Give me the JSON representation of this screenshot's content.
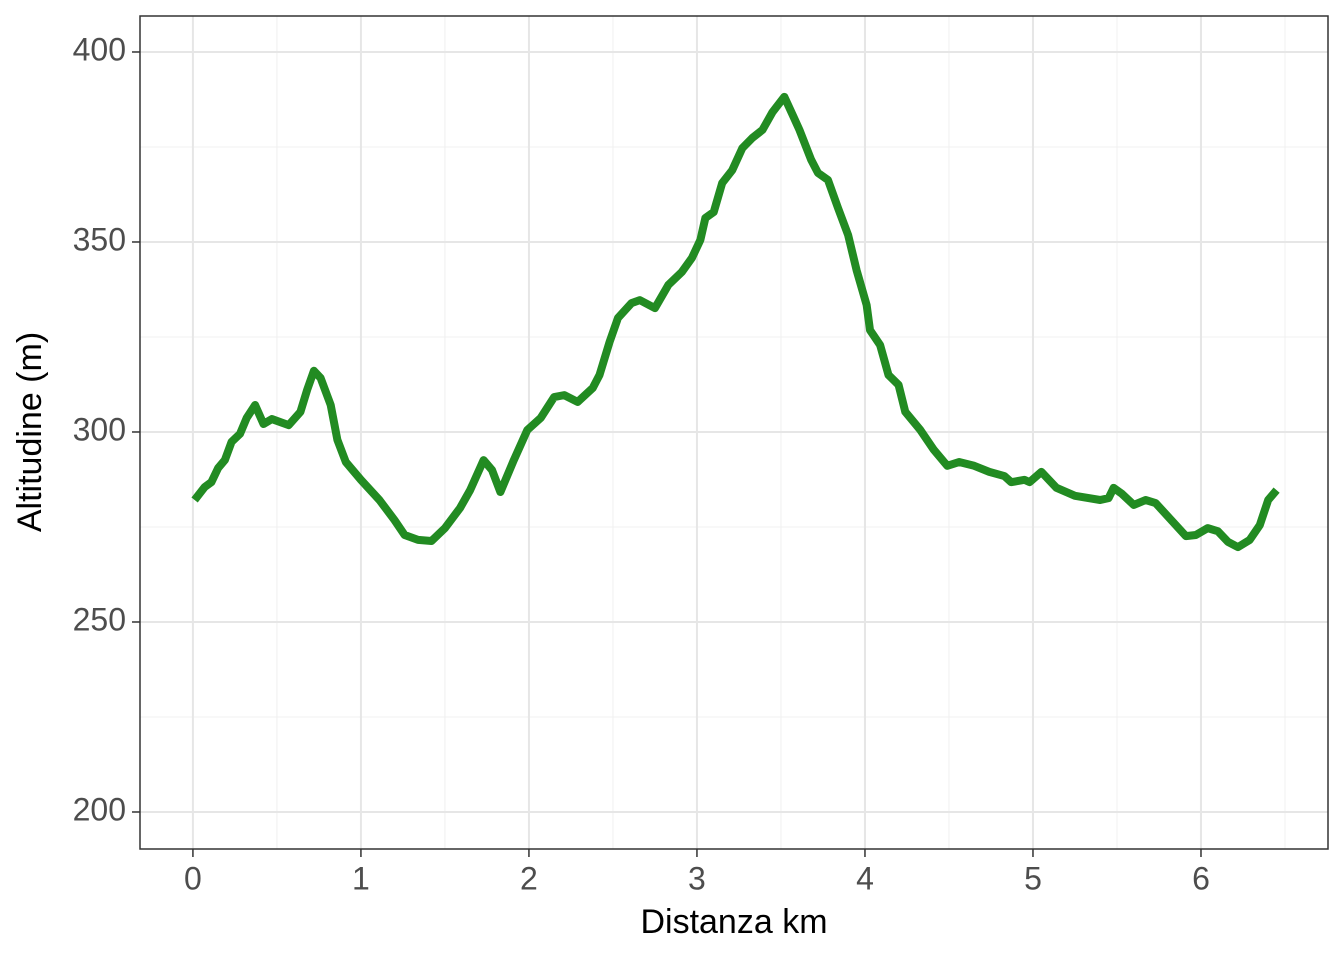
{
  "chart_data": {
    "type": "line",
    "x_label": "Distanza km",
    "y_label": "Altitudine (m)",
    "x": [
      0.01,
      0.07,
      0.11,
      0.15,
      0.19,
      0.23,
      0.28,
      0.32,
      0.37,
      0.42,
      0.47,
      0.57,
      0.64,
      0.68,
      0.72,
      0.76,
      0.82,
      0.86,
      0.91,
      1.0,
      1.11,
      1.2,
      1.26,
      1.34,
      1.42,
      1.5,
      1.59,
      1.65,
      1.73,
      1.78,
      1.83,
      1.91,
      1.99,
      2.07,
      2.15,
      2.21,
      2.29,
      2.38,
      2.42,
      2.48,
      2.53,
      2.61,
      2.66,
      2.75,
      2.83,
      2.91,
      2.97,
      3.02,
      3.05,
      3.1,
      3.15,
      3.21,
      3.27,
      3.33,
      3.39,
      3.45,
      3.52,
      3.57,
      3.61,
      3.68,
      3.72,
      3.78,
      3.84,
      3.9,
      3.95,
      4.01,
      4.03,
      4.09,
      4.14,
      4.2,
      4.24,
      4.33,
      4.41,
      4.49,
      4.56,
      4.65,
      4.74,
      4.83,
      4.87,
      4.95,
      4.98,
      5.05,
      5.14,
      5.25,
      5.4,
      5.45,
      5.48,
      5.53,
      5.6,
      5.67,
      5.73,
      5.85,
      5.91,
      5.97,
      6.04,
      6.1,
      6.16,
      6.22,
      6.29,
      6.35,
      6.4,
      6.45
    ],
    "series": [
      {
        "color": "#228b22",
        "values": [
          282.1,
          285.5,
          286.8,
          290.5,
          292.6,
          297.4,
          299.5,
          303.7,
          307.1,
          302.1,
          303.4,
          301.8,
          305.3,
          311.1,
          316.1,
          314.2,
          307.1,
          297.9,
          292.1,
          287.4,
          282.1,
          276.8,
          272.9,
          271.6,
          271.3,
          274.7,
          280.0,
          284.7,
          292.6,
          290.0,
          284.2,
          292.6,
          300.5,
          303.7,
          309.2,
          309.7,
          307.9,
          311.6,
          315.0,
          323.7,
          330.0,
          333.9,
          334.7,
          332.6,
          338.7,
          342.1,
          345.8,
          350.5,
          356.3,
          357.9,
          365.5,
          368.9,
          374.7,
          377.4,
          379.5,
          384.2,
          388.2,
          383.4,
          379.5,
          371.6,
          368.2,
          366.3,
          358.9,
          351.8,
          342.6,
          333.4,
          326.8,
          322.9,
          315.0,
          312.4,
          305.3,
          300.5,
          295.3,
          291.1,
          292.1,
          291.1,
          289.5,
          288.4,
          286.8,
          287.4,
          286.8,
          289.5,
          285.3,
          283.2,
          282.1,
          282.6,
          285.3,
          283.7,
          280.8,
          282.1,
          281.3,
          275.5,
          272.6,
          272.9,
          274.7,
          273.9,
          271.1,
          269.7,
          271.6,
          275.5,
          282.1,
          284.7
        ]
      }
    ],
    "xlim": [
      -0.315,
      6.756
    ],
    "ylim": [
      190.26,
      409.47
    ],
    "xticks": [
      0,
      1,
      2,
      3,
      4,
      5,
      6
    ],
    "yticks": [
      200,
      250,
      300,
      350,
      400
    ],
    "xminor": [
      0.5,
      1.5,
      2.5,
      3.5,
      4.5,
      5.5,
      6.5
    ],
    "yminor": [
      225,
      275,
      325,
      375
    ],
    "grid": true
  }
}
